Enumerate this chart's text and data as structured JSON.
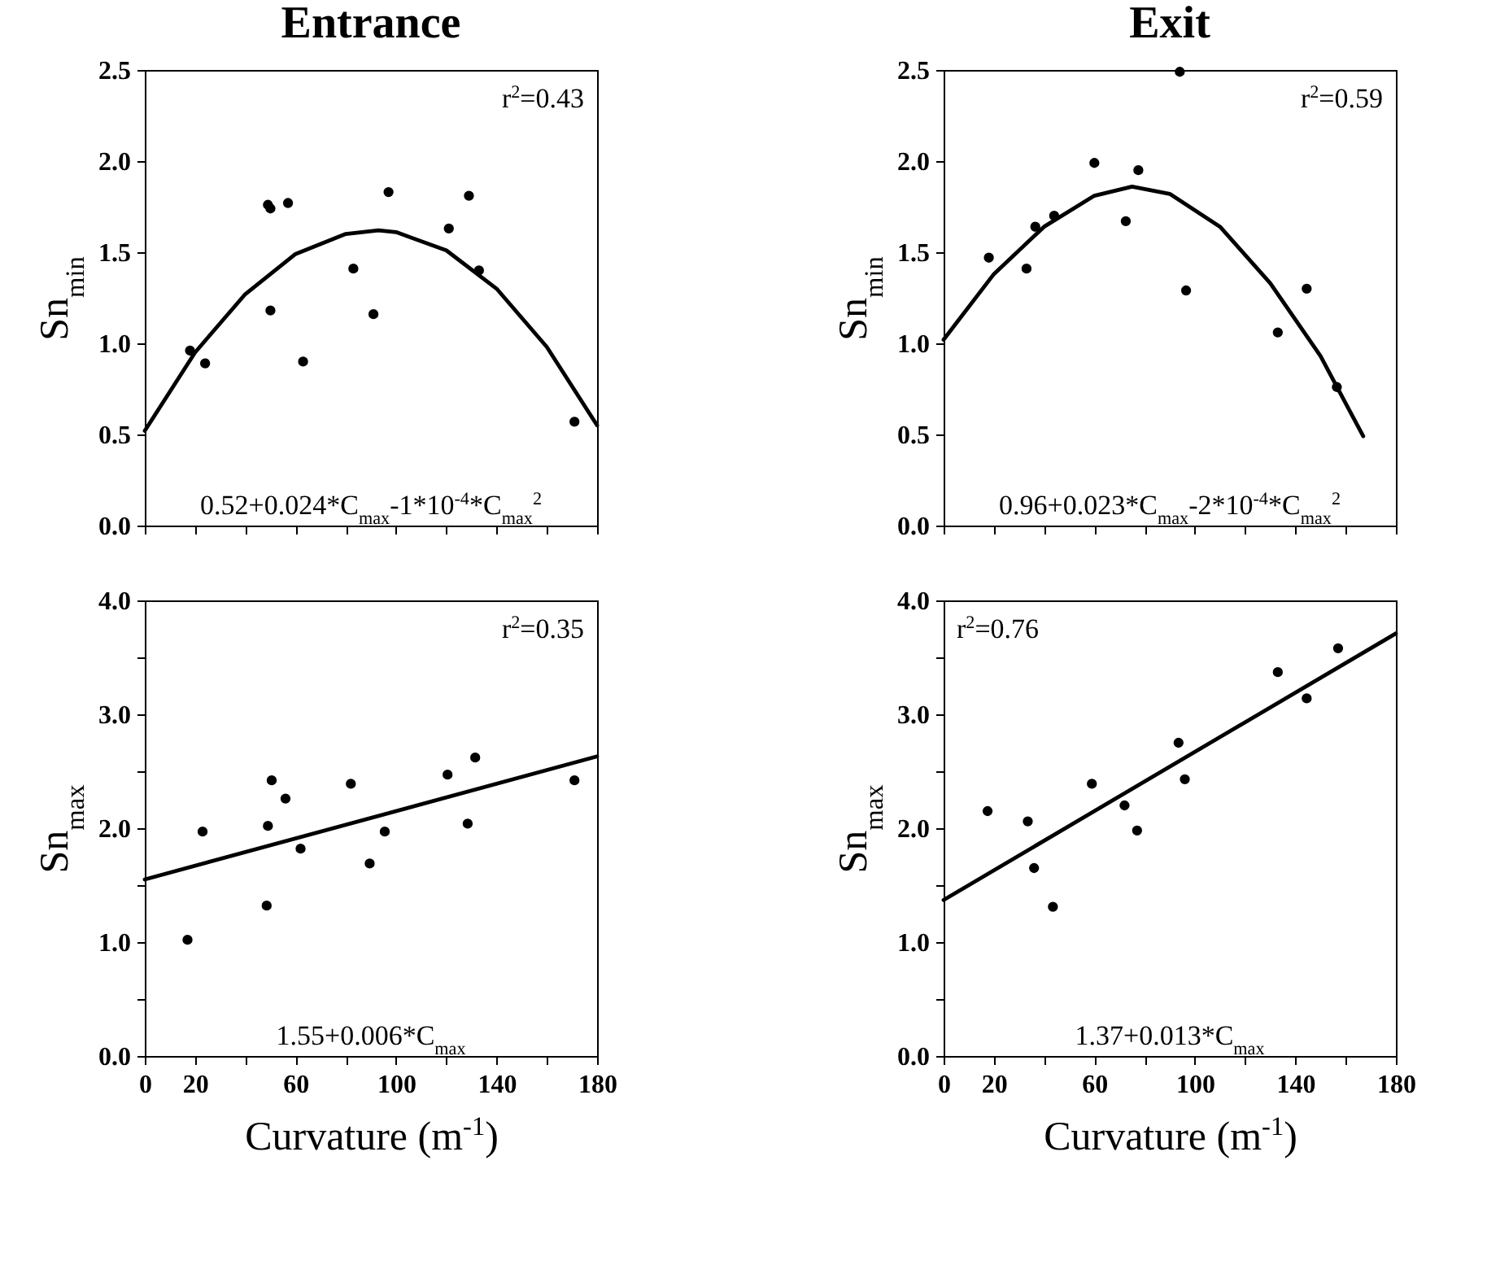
{
  "chart_data": [
    {
      "type": "scatter",
      "title": "Entrance",
      "ylabel": "Sn$_{min}$",
      "xlim": [
        0,
        180
      ],
      "ylim": [
        0,
        2.5
      ],
      "tick_labels": "y",
      "grid": false,
      "xticks": [
        0,
        20,
        40,
        60,
        80,
        100,
        120,
        140,
        160,
        180
      ],
      "yticks": [
        {
          "value": 0,
          "label": "0.0"
        },
        {
          "value": 0.5,
          "label": "0.5"
        },
        {
          "value": 1,
          "label": "1.0"
        },
        {
          "value": 1.5,
          "label": "1.5"
        },
        {
          "value": 2,
          "label": "2.0"
        },
        {
          "value": 2.5,
          "label": "2.5"
        }
      ],
      "annotations": [
        "r$^{2}$=0.43",
        "0.52+0.024*C$_{max}$-1*10$^{-4}$*C$_{max}$$^{2}$"
      ],
      "series": [
        {
          "color": "#000000",
          "marker": "circle",
          "x": [
            18,
            24,
            49,
            50,
            50,
            57,
            63,
            83,
            91,
            97,
            121,
            129,
            133,
            171
          ],
          "values": [
            0.96,
            0.89,
            1.76,
            1.18,
            1.74,
            1.77,
            0.9,
            1.41,
            1.16,
            1.83,
            1.63,
            1.81,
            1.4,
            0.57
          ]
        },
        {
          "type": "line",
          "color": "#000000",
          "line_style": "solid",
          "x": [
            0,
            20,
            40,
            60,
            80,
            93,
            100,
            120,
            140,
            160,
            180
          ],
          "values": [
            0.52,
            0.95,
            1.27,
            1.49,
            1.6,
            1.62,
            1.61,
            1.51,
            1.3,
            0.98,
            0.55
          ]
        }
      ]
    },
    {
      "type": "scatter",
      "title": "Exit",
      "ylabel": "Sn$_{min}$",
      "xlim": [
        0,
        180
      ],
      "ylim": [
        0,
        2.5
      ],
      "tick_labels": "y",
      "grid": false,
      "xticks": [
        0,
        20,
        40,
        60,
        80,
        100,
        120,
        140,
        160,
        180
      ],
      "yticks": [
        {
          "value": 0,
          "label": "0.0"
        },
        {
          "value": 0.5,
          "label": "0.5"
        },
        {
          "value": 1,
          "label": "1.0"
        },
        {
          "value": 1.5,
          "label": "1.5"
        },
        {
          "value": 2,
          "label": "2.0"
        },
        {
          "value": 2.5,
          "label": "2.5"
        }
      ],
      "annotations": [
        "r$^{2}$=0.59",
        "0.96+0.023*C$_{max}$-2*10$^{-4}$*C$_{max}$$^{2}$"
      ],
      "series": [
        {
          "color": "#000000",
          "marker": "circle",
          "x": [
            18,
            33,
            36.5,
            44,
            60,
            72.5,
            77.5,
            94,
            96.5,
            133,
            144.5,
            156.5
          ],
          "values": [
            1.47,
            1.41,
            1.64,
            1.7,
            1.99,
            1.67,
            1.95,
            2.49,
            1.29,
            1.06,
            1.3,
            0.76
          ]
        },
        {
          "type": "line",
          "color": "#000000",
          "line_style": "solid",
          "x": [
            0,
            20,
            40,
            60,
            75,
            90,
            110,
            130,
            150,
            167
          ],
          "values": [
            1.02,
            1.38,
            1.64,
            1.81,
            1.86,
            1.82,
            1.64,
            1.33,
            0.93,
            0.49
          ]
        }
      ]
    },
    {
      "type": "scatter",
      "ylabel": "Sn$_{max}$",
      "xlabel": "Curvature (m$^{-1}$)",
      "xlim": [
        0,
        180
      ],
      "ylim": [
        0,
        4
      ],
      "grid": false,
      "xticks": [
        0,
        20,
        {
          "value": 40,
          "label": null
        },
        60,
        {
          "value": 80,
          "label": null
        },
        100,
        {
          "value": 120,
          "label": null
        },
        140,
        {
          "value": 160,
          "label": null
        },
        180
      ],
      "yticks": [
        {
          "value": 0,
          "label": "0.0"
        },
        {
          "value": 0.5,
          "label": null
        },
        {
          "value": 1,
          "label": "1.0"
        },
        {
          "value": 1.5,
          "label": null
        },
        {
          "value": 2,
          "label": "2.0"
        },
        {
          "value": 2.5,
          "label": null
        },
        {
          "value": 3,
          "label": "3.0"
        },
        {
          "value": 3.5,
          "label": null
        },
        {
          "value": 4,
          "label": "4.0"
        }
      ],
      "annotations": [
        "r$^{2}$=0.35",
        "1.55+0.006*C$_{max}$"
      ],
      "series": [
        {
          "color": "#000000",
          "marker": "circle",
          "x": [
            17,
            23,
            48.5,
            49,
            50.5,
            56,
            62,
            82,
            89.5,
            95.5,
            120.5,
            128.5,
            131.5,
            171
          ],
          "values": [
            1.02,
            1.97,
            1.32,
            2.02,
            2.42,
            2.26,
            1.82,
            2.39,
            1.69,
            1.97,
            2.47,
            2.04,
            2.62,
            2.42
          ]
        },
        {
          "type": "line",
          "color": "#000000",
          "line_style": "solid",
          "x": [
            0,
            180
          ],
          "values": [
            1.55,
            2.63
          ]
        }
      ]
    },
    {
      "type": "scatter",
      "ylabel": "Sn$_{max}$",
      "xlabel": "Curvature (m$^{-1}$)",
      "xlim": [
        0,
        180
      ],
      "ylim": [
        0,
        4
      ],
      "grid": false,
      "xticks": [
        0,
        20,
        {
          "value": 40,
          "label": null
        },
        60,
        {
          "value": 80,
          "label": null
        },
        100,
        {
          "value": 120,
          "label": null
        },
        140,
        {
          "value": 160,
          "label": null
        },
        180
      ],
      "yticks": [
        {
          "value": 0,
          "label": "0.0"
        },
        {
          "value": 0.5,
          "label": null
        },
        {
          "value": 1,
          "label": "1.0"
        },
        {
          "value": 1.5,
          "label": null
        },
        {
          "value": 2,
          "label": "2.0"
        },
        {
          "value": 2.5,
          "label": null
        },
        {
          "value": 3,
          "label": "3.0"
        },
        {
          "value": 3.5,
          "label": null
        },
        {
          "value": 4,
          "label": "4.0"
        }
      ],
      "annotations": [
        "r$^{2}$=0.76",
        "1.37+0.013*C$_{max}$"
      ],
      "series": [
        {
          "color": "#000000",
          "marker": "circle",
          "x": [
            17.5,
            33.5,
            36,
            43.5,
            59,
            72,
            77,
            93.5,
            96,
            133,
            144.5,
            157
          ],
          "values": [
            2.15,
            2.06,
            1.65,
            1.31,
            2.39,
            2.2,
            1.98,
            2.75,
            2.43,
            3.37,
            3.14,
            3.58
          ]
        },
        {
          "type": "line",
          "color": "#000000",
          "line_style": "solid",
          "x": [
            0,
            180
          ],
          "values": [
            1.37,
            3.71
          ]
        }
      ]
    }
  ]
}
